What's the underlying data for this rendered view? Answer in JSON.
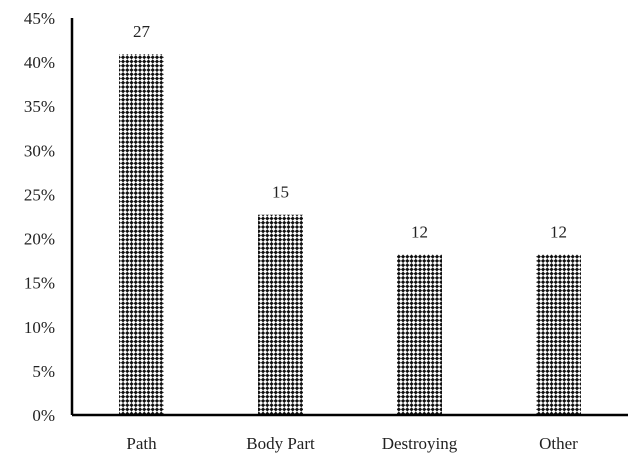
{
  "chart_data": {
    "type": "bar",
    "title": "",
    "xlabel": "",
    "ylabel": "",
    "categories": [
      "Path",
      "Body Part",
      "Destroying",
      "Other"
    ],
    "values": [
      0.409,
      0.227,
      0.182,
      0.182
    ],
    "data_labels": [
      "27",
      "15",
      "12",
      "12"
    ],
    "ylim": [
      0,
      0.45
    ],
    "yticks": [
      0,
      0.05,
      0.1,
      0.15,
      0.2,
      0.25,
      0.3,
      0.35,
      0.4,
      0.45
    ],
    "ytick_labels": [
      "0%",
      "5%",
      "10%",
      "15%",
      "20%",
      "25%",
      "30%",
      "35%",
      "40%",
      "45%"
    ],
    "grid": false,
    "legend": "none",
    "bar_fill": "diagonal-checker-pattern",
    "colors": {
      "bar_dark": "#111111",
      "bar_light": "#ffffff",
      "axis": "#000000",
      "text": "#222222"
    }
  }
}
